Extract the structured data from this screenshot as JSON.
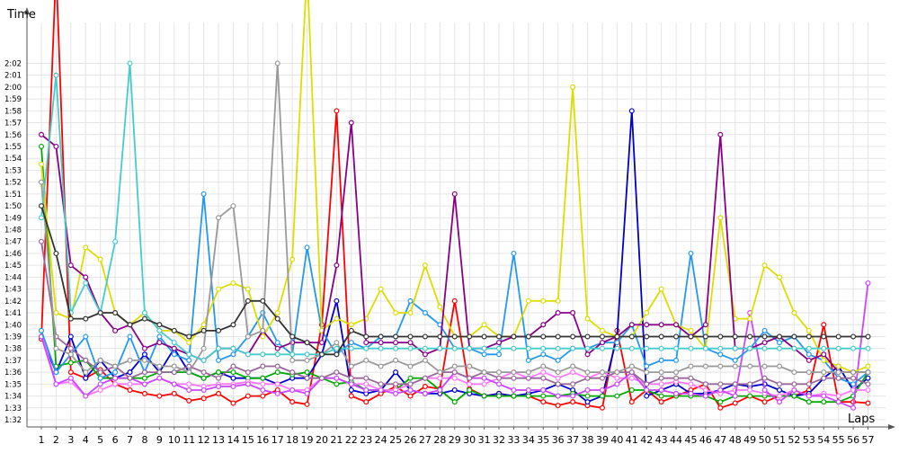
{
  "chart_data": {
    "type": "line",
    "title": "",
    "ylabel": "Time",
    "xlabel": "Laps",
    "x": [
      1,
      2,
      3,
      4,
      5,
      6,
      7,
      8,
      9,
      10,
      11,
      12,
      13,
      14,
      15,
      16,
      17,
      18,
      19,
      20,
      21,
      22,
      23,
      24,
      25,
      26,
      27,
      28,
      29,
      30,
      31,
      32,
      33,
      34,
      35,
      36,
      37,
      38,
      39,
      40,
      41,
      42,
      43,
      44,
      45,
      46,
      47,
      48,
      49,
      50,
      51,
      52,
      53,
      54,
      55,
      56,
      57
    ],
    "ylim_seconds": [
      92,
      124
    ],
    "yticks": [
      "1:32",
      "1:33",
      "1:34",
      "1:35",
      "1:36",
      "1:37",
      "1:38",
      "1:39",
      "1:40",
      "1:41",
      "1:42",
      "1:43",
      "1:44",
      "1:45",
      "1:46",
      "1:47",
      "1:48",
      "1:49",
      "1:50",
      "1:51",
      "1:52",
      "1:53",
      "1:54",
      "1:55",
      "1:56",
      "1:57",
      "1:58",
      "1:59",
      "2:00",
      "2:01",
      "2:02"
    ],
    "grid": true,
    "series": [
      {
        "color": "#ff0000",
        "values": [
          98.8,
          130,
          96,
          95.5,
          96.2,
          95,
          94.5,
          94.2,
          94,
          94.2,
          93.6,
          93.8,
          94.2,
          93.4,
          94,
          94,
          94.5,
          93.5,
          93.3,
          100,
          118,
          94,
          93.5,
          94.2,
          94.8,
          94,
          94.8,
          94.6,
          102,
          94.6,
          94,
          94.2,
          94,
          94,
          93.5,
          93.2,
          93.5,
          93.2,
          93,
          99.5,
          93.5,
          94.5,
          93.5,
          94,
          94.5,
          95,
          93,
          93.4,
          94,
          93.5,
          94,
          94,
          94.5,
          100,
          93.5,
          93.5,
          93.4
        ]
      },
      {
        "color": "#0000cc",
        "values": [
          99,
          96,
          99,
          95.5,
          97,
          95.5,
          96,
          97.5,
          96,
          98,
          96,
          95.5,
          96,
          95.5,
          95.5,
          95.5,
          95,
          95.5,
          95.5,
          97.5,
          102,
          94.5,
          94.2,
          94.5,
          96,
          94.5,
          94.2,
          94.2,
          94.5,
          94.2,
          94,
          94.2,
          94,
          94.2,
          94.5,
          95,
          94.5,
          93.5,
          94,
          99,
          118,
          94,
          94.5,
          95,
          94.2,
          94.2,
          94.5,
          95,
          94.8,
          95,
          94.5,
          94,
          94.2,
          95.5,
          96.5,
          94.5,
          95.5
        ]
      },
      {
        "color": "#00aa00",
        "values": [
          115,
          96.5,
          96.8,
          97,
          95.5,
          95.5,
          95.5,
          95.5,
          96,
          96,
          96,
          95.5,
          96,
          96,
          95.5,
          95.5,
          96,
          95.8,
          96,
          95.5,
          95,
          95.2,
          94.5,
          94.5,
          94.5,
          95.5,
          95.5,
          94.5,
          93.5,
          94.5,
          94,
          94,
          94,
          94,
          94,
          94,
          94.2,
          94,
          94,
          94,
          94.5,
          94.5,
          94,
          94,
          94,
          94,
          93.5,
          94,
          94,
          94,
          94,
          94,
          93.5,
          93.5,
          93.5,
          94,
          96
        ]
      },
      {
        "color": "#ff77ff",
        "values": [
          99.5,
          95,
          95.2,
          94,
          94.5,
          95,
          95,
          95,
          95.5,
          95,
          95,
          94.8,
          95,
          95,
          95.2,
          95,
          95,
          94.5,
          94.5,
          95.5,
          95.5,
          95,
          95,
          94.5,
          94.5,
          95,
          95.5,
          95.5,
          95.5,
          95,
          95,
          95.5,
          96,
          95.5,
          96,
          95.5,
          96,
          95.5,
          96,
          95.5,
          95.5,
          95,
          95,
          95.2,
          95,
          94.5,
          94.2,
          94.5,
          94.5,
          94.2,
          94,
          94.5,
          94,
          94.2,
          94,
          94.5,
          94.5
        ]
      },
      {
        "color": "#cc44ff",
        "values": [
          99,
          95,
          95.5,
          94,
          95,
          95.5,
          95.5,
          95,
          95.5,
          95,
          94.5,
          94.5,
          94.8,
          94.8,
          95,
          94.5,
          94.2,
          94.5,
          94.2,
          95.5,
          95.5,
          95,
          94.5,
          94.5,
          94.2,
          94.5,
          94.2,
          94.5,
          96,
          95.5,
          95.5,
          95,
          94.5,
          94.5,
          94.5,
          94,
          94,
          94.5,
          94.5,
          95,
          96,
          94.5,
          94.5,
          94.2,
          94.2,
          94,
          94.5,
          94,
          101,
          94.5,
          93.5,
          94.5,
          94,
          94,
          93.5,
          93,
          103.5
        ]
      },
      {
        "color": "#2299ee",
        "values": [
          99.5,
          96,
          97.5,
          99,
          95.5,
          96,
          99,
          96,
          99,
          97.5,
          97,
          111,
          97,
          97.5,
          99,
          101,
          98.5,
          97.5,
          106.5,
          99.5,
          97.5,
          98.5,
          98,
          99,
          99,
          102,
          101,
          100,
          98,
          98,
          97.5,
          97.5,
          106,
          97,
          97.5,
          97,
          98,
          98,
          98.5,
          98.5,
          100,
          96.5,
          97,
          97,
          106,
          98,
          97.5,
          97,
          98,
          99.5,
          98.5,
          99,
          97.5,
          97,
          95.5,
          95,
          96
        ]
      },
      {
        "color": "#dddd00",
        "values": [
          113.5,
          101,
          100.5,
          106.5,
          105.5,
          101,
          100,
          101,
          99.5,
          99.5,
          98.5,
          100,
          103,
          103.5,
          103,
          99,
          101,
          105.5,
          130,
          99.5,
          100.5,
          100,
          100.5,
          103,
          101,
          101,
          105,
          101.5,
          99,
          99,
          100,
          99,
          99,
          102,
          102,
          102,
          120,
          100.5,
          99.5,
          99,
          99,
          101,
          103,
          100,
          99.5,
          98,
          109,
          100.5,
          100.5,
          105,
          104,
          101,
          99.5,
          97,
          96.5,
          96,
          96.5
        ]
      },
      {
        "color": "#880088",
        "values": [
          116,
          115,
          105,
          104,
          101,
          99.5,
          100,
          98,
          98.5,
          98,
          97.5,
          97,
          98,
          98,
          97.5,
          99.5,
          98,
          98.5,
          98.5,
          98.5,
          105,
          117,
          98.5,
          98.5,
          98.5,
          98.5,
          97.5,
          98,
          111,
          98,
          98,
          98.5,
          99,
          99,
          100,
          101,
          101,
          97.5,
          98.5,
          99,
          100,
          100,
          100,
          100,
          99,
          100,
          116,
          98,
          98,
          98.5,
          99,
          98,
          97,
          97.5,
          96,
          96,
          96
        ]
      },
      {
        "color": "#996699",
        "values": [
          107,
          99,
          98,
          97,
          96,
          96.5,
          95.5,
          96,
          96,
          96,
          96.5,
          96,
          95.5,
          96.5,
          96,
          96.5,
          96.5,
          96,
          95.5,
          95.5,
          96,
          95.5,
          95.5,
          95,
          95,
          95,
          95.5,
          96,
          96,
          95.5,
          96,
          95.5,
          95.5,
          95.5,
          95.5,
          95,
          95,
          95.5,
          95.5,
          96,
          96,
          95,
          95.5,
          95.5,
          95.5,
          95,
          95,
          95,
          95,
          95.5,
          95,
          95,
          95,
          95.5,
          95.5,
          95.5,
          95
        ]
      },
      {
        "color": "#999999",
        "values": [
          112,
          98,
          97.5,
          96,
          97,
          96.5,
          97,
          97,
          96.5,
          96.5,
          96,
          98,
          109,
          110,
          99,
          99.5,
          122,
          97,
          97,
          97.5,
          98.5,
          96.5,
          97,
          96.5,
          97,
          96.5,
          97,
          96,
          96.5,
          96.5,
          96,
          96,
          96,
          96,
          96.5,
          96,
          96.5,
          96,
          96,
          96,
          96.5,
          96,
          96,
          96,
          96.5,
          96.5,
          96.5,
          96.5,
          96.5,
          96.5,
          96.5,
          96,
          96,
          96,
          96,
          96,
          96
        ]
      },
      {
        "color": "#44cccc",
        "values": [
          109,
          121,
          101,
          103.5,
          101,
          107,
          122,
          101,
          99.5,
          98.5,
          97.5,
          97,
          98,
          98,
          97.5,
          97.5,
          97.5,
          97.5,
          97.5,
          97.5,
          98,
          98,
          98,
          98,
          98,
          98,
          98,
          98,
          98,
          98,
          98,
          98,
          98,
          98,
          98,
          98,
          98,
          98,
          98,
          98,
          98,
          98,
          98,
          98,
          98,
          98,
          98,
          98,
          98,
          98,
          98,
          98,
          98,
          98,
          98,
          98,
          98
        ]
      },
      {
        "color": "#333333",
        "values": [
          110,
          106,
          100.5,
          100.5,
          101,
          101,
          100,
          100.5,
          100,
          99.5,
          99,
          99.5,
          99.5,
          100,
          102,
          102,
          100.5,
          99,
          98.5,
          97.5,
          97.5,
          99.5,
          99,
          99,
          99,
          99,
          99,
          99,
          99,
          99,
          99,
          99,
          99,
          99,
          99,
          99,
          99,
          99,
          99,
          99,
          99,
          99,
          99,
          99,
          99,
          99,
          99,
          99,
          99,
          99,
          99,
          99,
          99,
          99,
          99,
          99,
          99
        ]
      }
    ]
  }
}
